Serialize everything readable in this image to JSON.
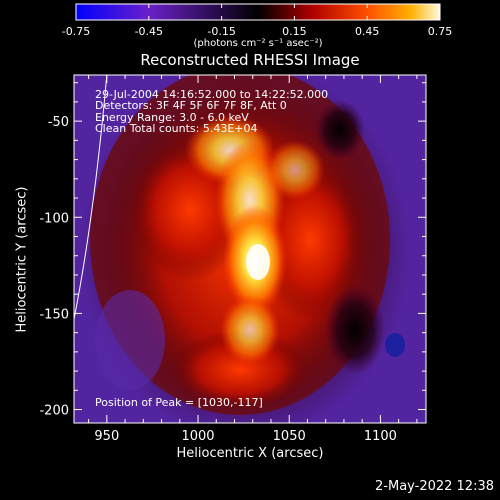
{
  "colorbar": {
    "ticks": [
      "-0.75",
      "-0.45",
      "-0.15",
      "0.15",
      "0.45",
      "0.75"
    ],
    "unit_label": "(photons cm⁻² s⁻¹ asec⁻²)",
    "range": [
      -0.75,
      0.75
    ],
    "colormap": [
      "#0000ff",
      "#5a20c8",
      "#000000",
      "#7a0000",
      "#ff3000",
      "#ff9000",
      "#fff6c0"
    ]
  },
  "chart_data": {
    "type": "heatmap",
    "title": "Reconstructed RHESSI Image",
    "xlabel": "Heliocentric X (arcsec)",
    "ylabel": "Heliocentric Y (arcsec)",
    "xlim": [
      932,
      1125
    ],
    "ylim": [
      -207,
      -26
    ],
    "xticks": [
      950,
      1000,
      1050,
      1100
    ],
    "yticks": [
      -50,
      -100,
      -150,
      -200
    ],
    "info_lines": [
      "29-Jul-2004 14:16:52.000 to 14:22:52.000",
      "Detectors: 3F 4F 5F 6F 7F 8F, Att 0",
      "Energy Range: 3.0 - 6.0 keV",
      "Clean     Total counts: 5.43E+04"
    ],
    "peak_label": "Position of Peak = [1030,-117]",
    "peak": [
      1030,
      -117
    ],
    "limb_curve": [
      [
        950,
        -26
      ],
      [
        943,
        -100
      ],
      [
        932,
        -153
      ]
    ]
  },
  "footer": {
    "date": "2-May-2022 12:38"
  }
}
